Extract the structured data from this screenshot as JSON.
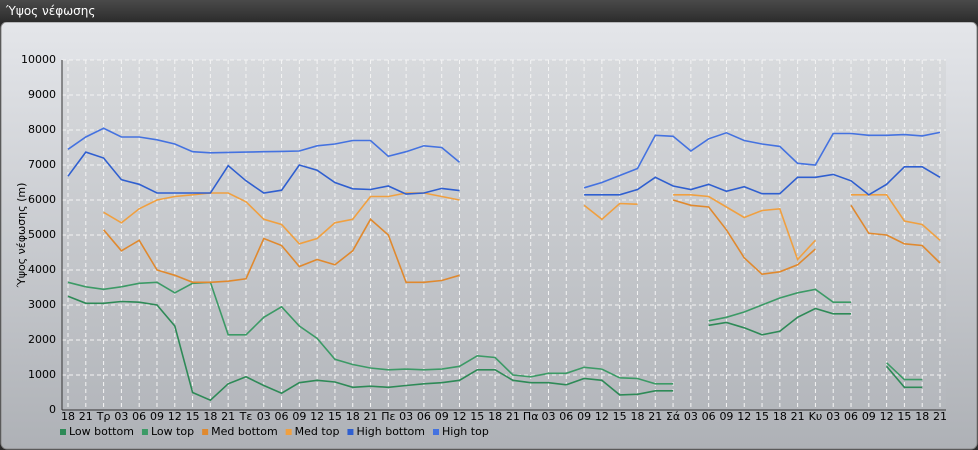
{
  "chart_data": {
    "type": "line",
    "title": "Ύψος νέφωσης",
    "y_label": "Ύψος νέφωσης (m)",
    "categories": [
      "18",
      "21",
      "Τρ",
      "03",
      "06",
      "09",
      "12",
      "15",
      "18",
      "21",
      "Τε",
      "03",
      "06",
      "09",
      "12",
      "15",
      "18",
      "21",
      "Πε",
      "03",
      "06",
      "09",
      "12",
      "15",
      "18",
      "21",
      "Πα",
      "03",
      "06",
      "09",
      "12",
      "15",
      "18",
      "21",
      "Σά",
      "03",
      "06",
      "09",
      "12",
      "15",
      "18",
      "21",
      "Κυ",
      "03",
      "06",
      "09",
      "12",
      "15",
      "18",
      "21"
    ],
    "ylim": [
      0,
      10000
    ],
    "yticks": [
      0,
      1000,
      2000,
      3000,
      4000,
      5000,
      6000,
      7000,
      8000,
      9000,
      10000
    ],
    "grid": true,
    "legend": "bottom-left",
    "series": [
      {
        "name": "Low bottom",
        "color": "#2e8a57",
        "values": [
          3250,
          3050,
          3050,
          3100,
          3080,
          3000,
          2400,
          500,
          280,
          750,
          950,
          700,
          480,
          780,
          850,
          800,
          650,
          680,
          650,
          700,
          750,
          780,
          850,
          1150,
          1150,
          850,
          780,
          780,
          720,
          900,
          850,
          430,
          450,
          550,
          550,
          null,
          2420,
          2500,
          2350,
          2150,
          2250,
          2650,
          2900,
          2750,
          2750,
          null,
          1250,
          650,
          650,
          null
        ]
      },
      {
        "name": "Low top",
        "color": "#3c9a66",
        "values": [
          3650,
          3520,
          3450,
          3520,
          3620,
          3650,
          3350,
          3620,
          3650,
          2150,
          2150,
          2650,
          2950,
          2400,
          2050,
          1450,
          1300,
          1200,
          1150,
          1170,
          1150,
          1170,
          1250,
          1550,
          1500,
          1000,
          950,
          1050,
          1050,
          1220,
          1170,
          920,
          900,
          750,
          750,
          null,
          2550,
          2650,
          2800,
          3000,
          3200,
          3350,
          3450,
          3080,
          3080,
          null,
          1350,
          870,
          870,
          null
        ]
      },
      {
        "name": "Med bottom",
        "color": "#e0892e",
        "values": [
          null,
          null,
          5150,
          4550,
          4850,
          4000,
          3850,
          3650,
          3650,
          3680,
          3750,
          4900,
          4700,
          4100,
          4300,
          4150,
          4550,
          5450,
          5000,
          3650,
          3650,
          3700,
          3850,
          null,
          null,
          null,
          null,
          null,
          null,
          null,
          null,
          null,
          null,
          null,
          6000,
          5850,
          5800,
          5150,
          4350,
          3880,
          3950,
          4150,
          4600,
          null,
          5850,
          5050,
          5000,
          4750,
          4700,
          4200
        ]
      },
      {
        "name": "Med top",
        "color": "#f0a040",
        "values": [
          null,
          null,
          5650,
          5350,
          5750,
          6000,
          6100,
          6150,
          6200,
          6200,
          5950,
          5450,
          5300,
          4750,
          4900,
          5350,
          5450,
          6100,
          6100,
          6200,
          6200,
          6100,
          6000,
          null,
          null,
          null,
          null,
          null,
          null,
          5850,
          5450,
          5900,
          5880,
          null,
          6150,
          6150,
          6100,
          5800,
          5500,
          5700,
          5750,
          4300,
          4850,
          null,
          6150,
          6150,
          6150,
          5400,
          5300,
          4850
        ]
      },
      {
        "name": "High bottom",
        "color": "#2f5fd0",
        "values": [
          6680,
          7370,
          7200,
          6580,
          6450,
          6200,
          6200,
          6200,
          6200,
          6980,
          6550,
          6200,
          6280,
          7000,
          6850,
          6500,
          6320,
          6300,
          6400,
          6170,
          6200,
          6330,
          6270,
          null,
          null,
          null,
          null,
          null,
          null,
          6150,
          6150,
          6150,
          6300,
          6650,
          6400,
          6300,
          6450,
          6250,
          6380,
          6180,
          6180,
          6650,
          6650,
          6730,
          6550,
          6150,
          6450,
          6950,
          6950,
          6650
        ]
      },
      {
        "name": "High top",
        "color": "#4472e0",
        "values": [
          7450,
          7800,
          8050,
          7800,
          7800,
          7720,
          7600,
          7380,
          7350,
          7360,
          7370,
          7380,
          7390,
          7400,
          7550,
          7600,
          7700,
          7700,
          7250,
          7380,
          7550,
          7500,
          7080,
          null,
          null,
          null,
          null,
          null,
          null,
          6350,
          6500,
          6700,
          6900,
          7850,
          7820,
          7400,
          7750,
          7920,
          7700,
          7600,
          7530,
          7050,
          7000,
          7900,
          7900,
          7850,
          7850,
          7870,
          7830,
          7930
        ]
      }
    ]
  }
}
